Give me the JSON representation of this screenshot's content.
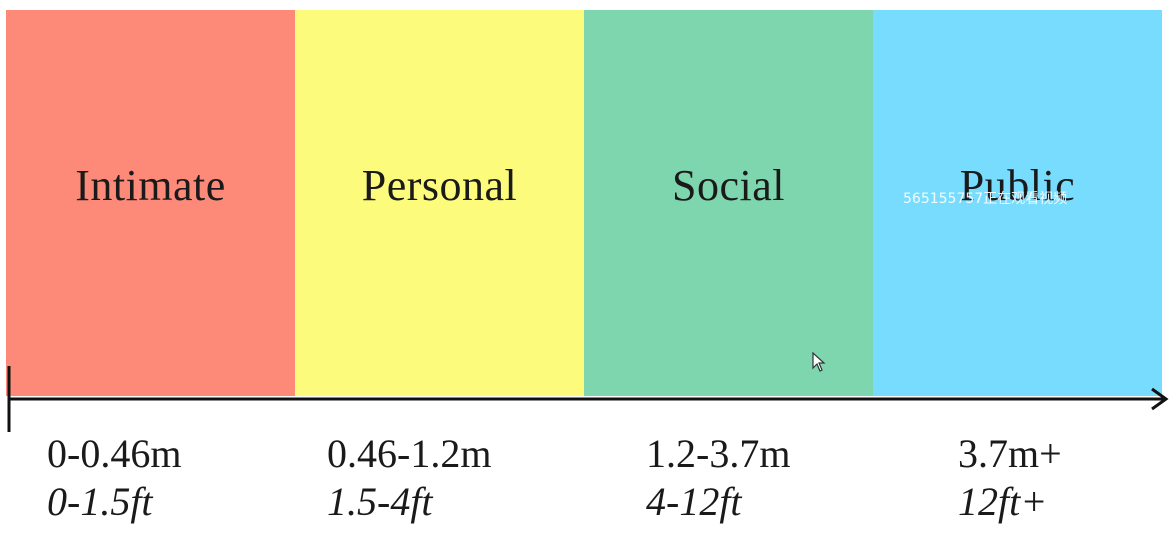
{
  "zones": [
    {
      "label": "Intimate",
      "color": "#fd8a78"
    },
    {
      "label": "Personal",
      "color": "#fdfb7c"
    },
    {
      "label": "Social",
      "color": "#7dd6ad"
    },
    {
      "label": "Public",
      "color": "#78dcff"
    }
  ],
  "ranges": [
    {
      "meters": "0-0.46m",
      "feet": "0-1.5ft"
    },
    {
      "meters": "0.46-1.2m",
      "feet": "1.5-4ft"
    },
    {
      "meters": "1.2-3.7m",
      "feet": "4-12ft"
    },
    {
      "meters": "3.7m+",
      "feet": "12ft+"
    }
  ],
  "overlay": {
    "watermark": "565155757正在观看视频"
  },
  "icons": {
    "axis_start": "axis-start-tick-icon",
    "axis_end": "arrow-right-icon",
    "cursor": "mouse-cursor-icon"
  }
}
